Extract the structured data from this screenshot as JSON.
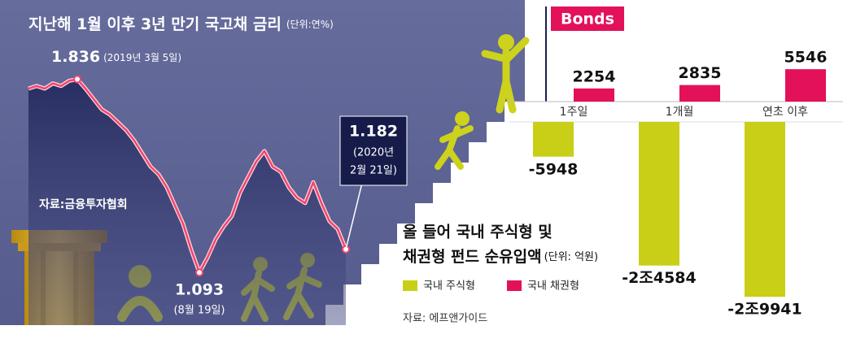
{
  "chart_data": [
    {
      "type": "line",
      "title": "지난해 1월 이후 3년 만기 국고채 금리",
      "unit": "(단위:연%)",
      "source": "자료:금융투자협회",
      "values": [
        1.8,
        1.81,
        1.8,
        1.82,
        1.81,
        1.83,
        1.836,
        1.8,
        1.76,
        1.72,
        1.7,
        1.67,
        1.64,
        1.6,
        1.55,
        1.5,
        1.47,
        1.42,
        1.35,
        1.28,
        1.18,
        1.093,
        1.15,
        1.22,
        1.27,
        1.31,
        1.4,
        1.46,
        1.52,
        1.56,
        1.5,
        1.48,
        1.42,
        1.38,
        1.36,
        1.44,
        1.36,
        1.29,
        1.26,
        1.182
      ],
      "color": "#f0466e",
      "ylim": [
        1.0,
        1.9
      ],
      "annotations": [
        "(2019년 3월 5일)",
        "(8월 19일)",
        "(2020년",
        "2월 21일)"
      ]
    },
    {
      "type": "bar",
      "title": [
        "올 들어 국내 주식형 및",
        "채권형 펀드 순유입액"
      ],
      "unit": "(단위: 억원)",
      "badge": "Bonds",
      "source": "자료: 에프앤가이드",
      "categories": [
        "1주일",
        "1개월",
        "연초 이후"
      ],
      "ylim": [
        -32000,
        7000
      ],
      "series": [
        {
          "name": "국내 주식형",
          "color": "#c9cf16",
          "values": [
            -5948,
            -24584,
            -29941
          ],
          "value_labels": [
            "-5948",
            "-2조4584",
            "-2조9941"
          ]
        },
        {
          "name": "국내 채권형",
          "color": "#e3105a",
          "values": [
            2254,
            2835,
            5546
          ]
        }
      ]
    }
  ]
}
